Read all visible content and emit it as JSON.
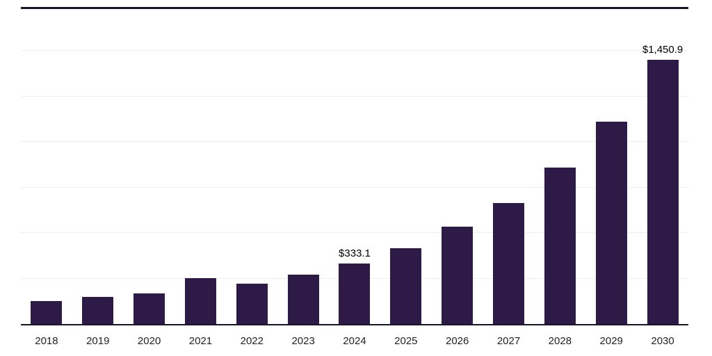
{
  "chart_data": {
    "type": "bar",
    "title": "",
    "xlabel": "",
    "ylabel": "",
    "categories": [
      "2018",
      "2019",
      "2020",
      "2021",
      "2022",
      "2023",
      "2024",
      "2025",
      "2026",
      "2027",
      "2028",
      "2029",
      "2030"
    ],
    "values": [
      127,
      150,
      168,
      254,
      220,
      272,
      333.1,
      415,
      534,
      664,
      858,
      1112,
      1450.9
    ],
    "data_labels": [
      null,
      null,
      null,
      null,
      null,
      null,
      "$333.1",
      null,
      null,
      null,
      null,
      null,
      "$1,450.9"
    ],
    "ylim": [
      0,
      1730
    ],
    "gridline_values": [
      250,
      500,
      750,
      1000,
      1250,
      1500
    ],
    "grid": "horizontal",
    "legend": "none",
    "bar_color": "#2E1A47",
    "axis_line_color": "#17142a",
    "gridline_color": "#efefef"
  }
}
